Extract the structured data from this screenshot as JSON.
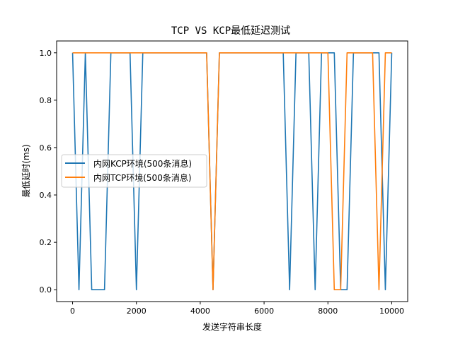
{
  "chart_data": {
    "type": "line",
    "title": "TCP VS KCP最低延迟测试",
    "xlabel": "发送字符串长度",
    "ylabel": "最低延时(ms)",
    "xlim": [
      -500,
      10500
    ],
    "ylim": [
      -0.05,
      1.05
    ],
    "xticks": [
      0,
      2000,
      4000,
      6000,
      8000,
      10000
    ],
    "xtick_labels": [
      "0",
      "2000",
      "4000",
      "6000",
      "8000",
      "10000"
    ],
    "yticks": [
      0.0,
      0.2,
      0.4,
      0.6,
      0.8,
      1.0
    ],
    "ytick_labels": [
      "0.0",
      "0.2",
      "0.4",
      "0.6",
      "0.8",
      "1.0"
    ],
    "grid": false,
    "legend_position": "center left",
    "x": [
      0,
      200,
      400,
      600,
      800,
      1000,
      1200,
      1400,
      1600,
      1800,
      2000,
      2200,
      2400,
      2600,
      2800,
      3000,
      3200,
      3400,
      3600,
      3800,
      4000,
      4200,
      4400,
      4600,
      4800,
      5000,
      5200,
      5400,
      5600,
      5800,
      6000,
      6200,
      6400,
      6600,
      6800,
      7000,
      7200,
      7400,
      7600,
      7800,
      8000,
      8200,
      8400,
      8600,
      8800,
      9000,
      9200,
      9400,
      9600,
      9800,
      10000
    ],
    "series": [
      {
        "name": "内网KCP环境(500条消息)",
        "color": "#1f77b4",
        "values": [
          1,
          0,
          1,
          0,
          0,
          0,
          1,
          1,
          1,
          1,
          0,
          1,
          1,
          1,
          1,
          1,
          1,
          1,
          1,
          1,
          1,
          1,
          0,
          1,
          1,
          1,
          1,
          1,
          1,
          1,
          1,
          1,
          1,
          1,
          0,
          1,
          1,
          1,
          0,
          1,
          1,
          1,
          0,
          0,
          1,
          1,
          1,
          1,
          1,
          0,
          1
        ]
      },
      {
        "name": "内网TCP环境(500条消息)",
        "color": "#ff7f0e",
        "values": [
          1,
          1,
          1,
          1,
          1,
          1,
          1,
          1,
          1,
          1,
          1,
          1,
          1,
          1,
          1,
          1,
          1,
          1,
          1,
          1,
          1,
          1,
          0,
          1,
          1,
          1,
          1,
          1,
          1,
          1,
          1,
          1,
          1,
          1,
          1,
          1,
          1,
          1,
          1,
          1,
          1,
          0,
          0,
          1,
          1,
          1,
          1,
          1,
          0,
          1,
          1
        ]
      }
    ]
  }
}
